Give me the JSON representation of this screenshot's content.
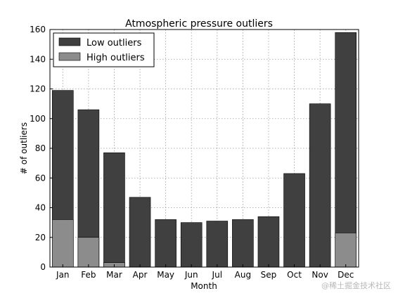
{
  "chart_data": {
    "type": "bar",
    "stacked": "overlay",
    "title": "Atmospheric pressure outliers",
    "xlabel": "Month",
    "ylabel": "# of outliers",
    "categories": [
      "Jan",
      "Feb",
      "Mar",
      "Apr",
      "May",
      "Jun",
      "Jul",
      "Aug",
      "Sep",
      "Oct",
      "Nov",
      "Dec"
    ],
    "series": [
      {
        "name": "Low outliers",
        "color": "#404040",
        "values": [
          119,
          106,
          77,
          47,
          32,
          30,
          31,
          32,
          34,
          63,
          110,
          158
        ]
      },
      {
        "name": "High outliers",
        "color": "#8c8c8c",
        "values": [
          32,
          20,
          3,
          0,
          0,
          0,
          0,
          0,
          0,
          0,
          0,
          23
        ]
      }
    ],
    "ylim": [
      0,
      160
    ],
    "yticks": [
      0,
      20,
      40,
      60,
      80,
      100,
      120,
      140,
      160
    ],
    "grid": true,
    "legend_position": "top-left"
  },
  "watermark": "@稀土掘金技术社区"
}
